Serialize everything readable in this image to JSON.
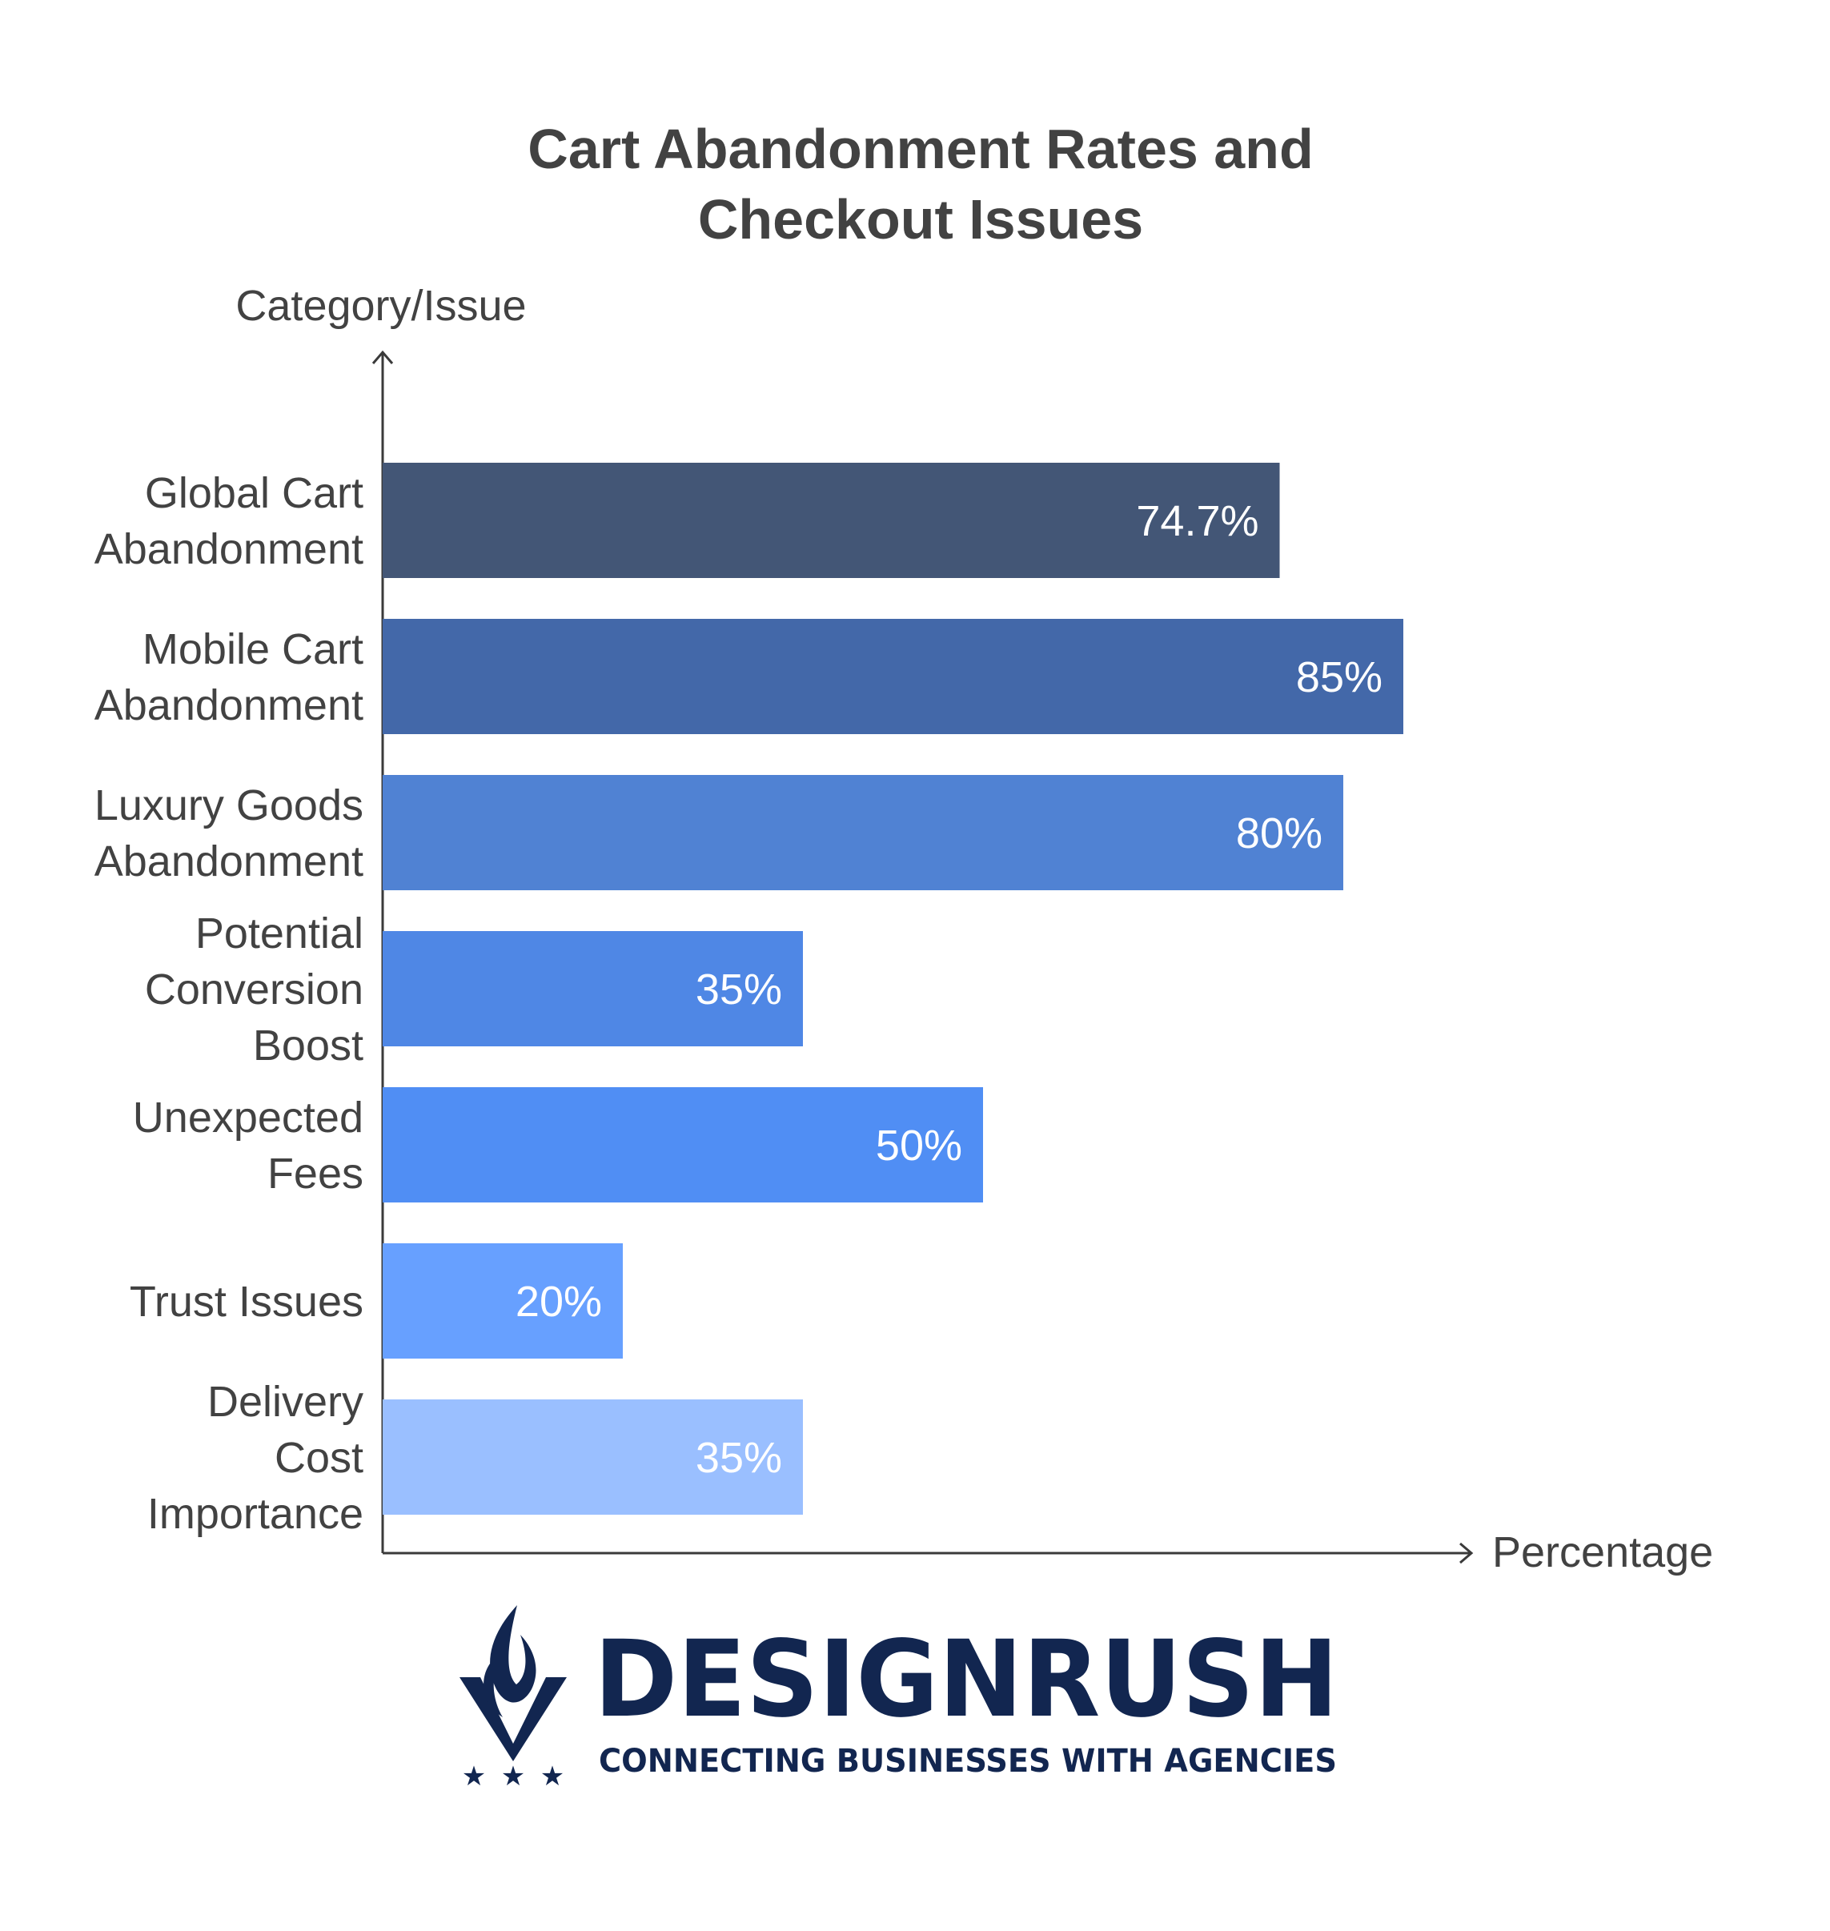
{
  "chart_data": {
    "type": "bar",
    "orientation": "horizontal",
    "title": [
      "Cart Abandonment Rates and",
      "Checkout Issues"
    ],
    "ylabel": "Category/Issue",
    "xlabel": "Percentage",
    "categories": [
      [
        "Global Cart",
        "Abandonment"
      ],
      [
        "Mobile Cart",
        "Abandonment"
      ],
      [
        "Luxury Goods",
        "Abandonment"
      ],
      [
        "Potential",
        "Conversion",
        "Boost"
      ],
      [
        "Unexpected",
        "Fees"
      ],
      [
        "Trust Issues"
      ],
      [
        "Delivery",
        "Cost",
        "Importance"
      ]
    ],
    "values": [
      74.7,
      85,
      80,
      35,
      50,
      20,
      35
    ],
    "value_labels": [
      "74.7%",
      "85%",
      "80%",
      "35%",
      "50%",
      "20%",
      "35%"
    ],
    "colors": [
      "#435676",
      "#4368A9",
      "#5082D3",
      "#4F87E5",
      "#508EF4",
      "#67A0FF",
      "#9ABFFF"
    ],
    "grid": false,
    "legend": "none"
  },
  "brand": {
    "name": "DESIGNRUSH",
    "tagline": "CONNECTING BUSINESSES WITH AGENCIES",
    "color": "#122650"
  }
}
